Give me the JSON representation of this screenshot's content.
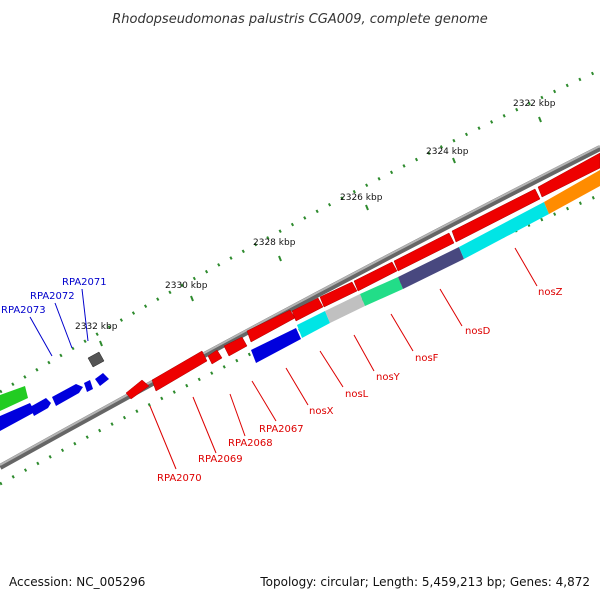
{
  "title": "Rhodopseudomonas palustris CGA009, complete genome",
  "footer": {
    "accession": "Accession: NC_005296",
    "summary": "Topology: circular; Length: 5,459,213 bp; Genes: 4,872"
  },
  "colors": {
    "backbone": "#8a8a8a",
    "tick": "#2e8b2e",
    "forward_label": "#0000cc",
    "reverse_label": "#dd0000"
  },
  "scale": {
    "unit": "kbp",
    "ticks": [
      {
        "kbp": 2322,
        "label": "2322 kbp"
      },
      {
        "kbp": 2324,
        "label": "2324 kbp"
      },
      {
        "kbp": 2326,
        "label": "2326 kbp"
      },
      {
        "kbp": 2328,
        "label": "2328 kbp"
      },
      {
        "kbp": 2330,
        "label": "2330 kbp"
      },
      {
        "kbp": 2332,
        "label": "2332 kbp"
      }
    ]
  },
  "genes": [
    {
      "name": "RPA2073",
      "strand": "forward",
      "color": "#0000dd"
    },
    {
      "name": "RPA2072",
      "strand": "forward",
      "color": "#0000dd"
    },
    {
      "name": "RPA2071",
      "strand": "forward",
      "color": "#0000dd"
    },
    {
      "name": "RPA2070",
      "strand": "reverse",
      "color": "#ee0000"
    },
    {
      "name": "RPA2069",
      "strand": "reverse",
      "color": "#ee0000"
    },
    {
      "name": "RPA2068",
      "strand": "reverse",
      "color": "#ee0000"
    },
    {
      "name": "RPA2067",
      "strand": "reverse",
      "color": "#ee0000"
    },
    {
      "name": "nosX",
      "strand": "reverse",
      "color": "#0000dd"
    },
    {
      "name": "nosL",
      "strand": "reverse",
      "color": "#00e5e5"
    },
    {
      "name": "nosY",
      "strand": "reverse",
      "color": "#c0c0c0"
    },
    {
      "name": "nosF",
      "strand": "reverse",
      "color": "#22dd88"
    },
    {
      "name": "nosD",
      "strand": "reverse",
      "color": "#48487f"
    },
    {
      "name": "nosZ",
      "strand": "reverse",
      "color": "#00e5e5"
    }
  ]
}
